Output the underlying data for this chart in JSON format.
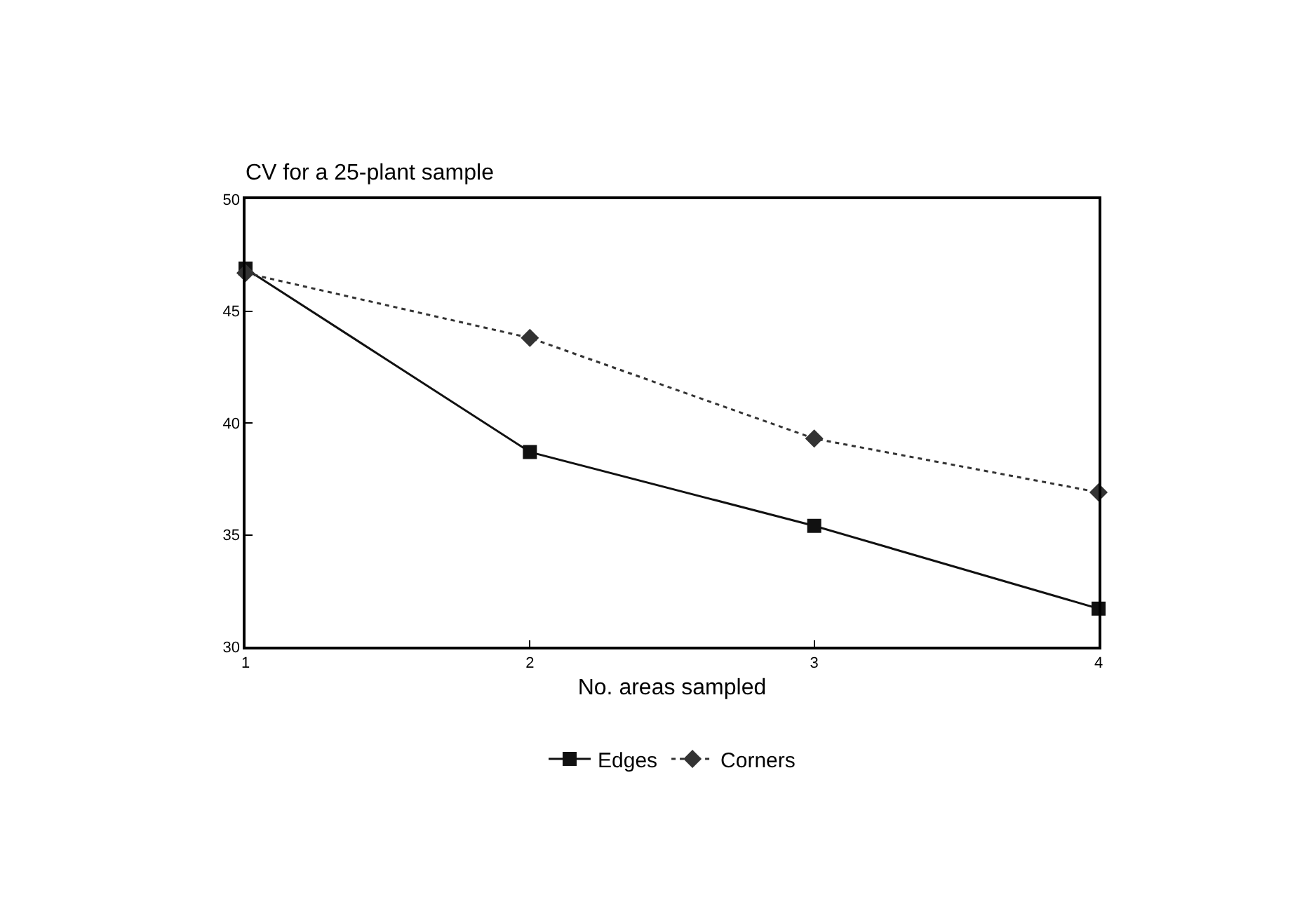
{
  "chart_data": {
    "type": "line",
    "title": "CV for a 25-plant sample",
    "xlabel": "No. areas sampled",
    "x": [
      1,
      2,
      3,
      4
    ],
    "series": [
      {
        "name": "Edges",
        "color": "#111111",
        "values": [
          46.9,
          38.7,
          35.4,
          31.7
        ],
        "marker": "square",
        "line_style": "solid"
      },
      {
        "name": "Corners",
        "color": "#333333",
        "values": [
          46.7,
          43.8,
          39.3,
          36.9
        ],
        "marker": "diamond",
        "line_style": "dotted"
      }
    ],
    "xlim": [
      1,
      4
    ],
    "xticks": [
      1,
      2,
      3,
      4
    ],
    "ylim": [
      30,
      50
    ],
    "yticks": [
      30,
      35,
      40,
      45,
      50
    ],
    "legend": "bottom"
  }
}
